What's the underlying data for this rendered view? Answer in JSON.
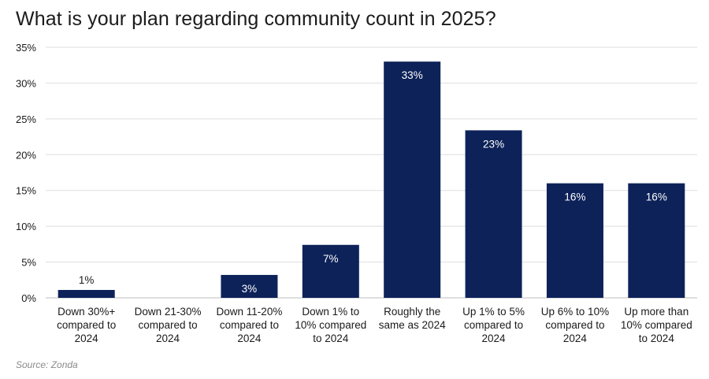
{
  "chart_data": {
    "type": "bar",
    "title": "What is your plan regarding community count in 2025?",
    "categories": [
      [
        "Down 30%+",
        "compared to",
        "2024"
      ],
      [
        "Down 21-30%",
        "compared to",
        "2024"
      ],
      [
        "Down 11-20%",
        "compared to",
        "2024"
      ],
      [
        "Down 1% to",
        "10% compared",
        "to 2024"
      ],
      [
        "Roughly the",
        "same as 2024"
      ],
      [
        "Up 1% to 5%",
        "compared to",
        "2024"
      ],
      [
        "Up 6% to 10%",
        "compared to",
        "2024"
      ],
      [
        "Up more than",
        "10% compared",
        "to 2024"
      ]
    ],
    "values": [
      1.1,
      null,
      3.2,
      7.4,
      33,
      23.4,
      16,
      16
    ],
    "data_labels": [
      "1%",
      "",
      "3%",
      "7%",
      "33%",
      "23%",
      "16%",
      "16%"
    ],
    "yticks": [
      "0%",
      "5%",
      "10%",
      "15%",
      "20%",
      "25%",
      "30%",
      "35%"
    ],
    "ylim": [
      0,
      35
    ],
    "xlabel": "",
    "ylabel": "",
    "grid": true,
    "bar_color": "#0d2259",
    "label_inside_color": "#ffffff",
    "label_outside_color": "#1a1a1a",
    "source": "Source: Zonda"
  }
}
